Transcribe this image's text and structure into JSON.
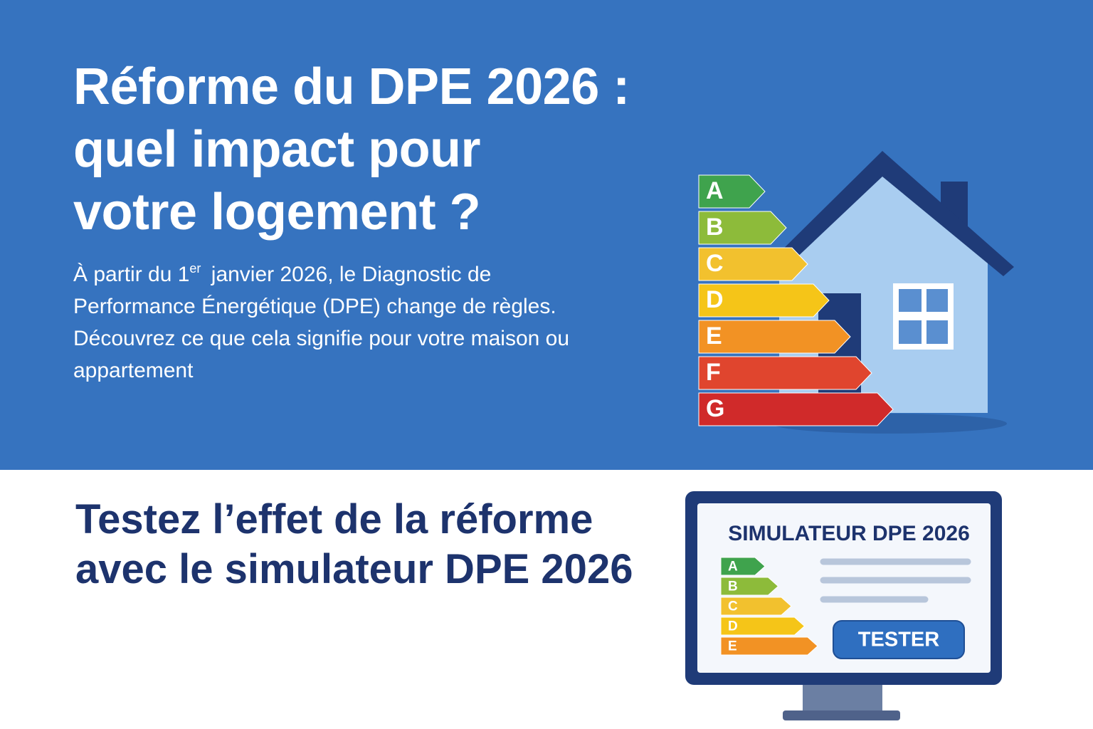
{
  "hero": {
    "title_lines": [
      "Réforme du DPE 2026 :",
      "quel impact pour",
      "votre logement ?"
    ],
    "intro": {
      "before": "À partir du 1",
      "sup": "er",
      "after": " janvier 2026, le Diagnostic de Performance Énergétique (DPE) change de règles. Découvrez ce que cela signifie pour votre maison ou appartement"
    },
    "energy_classes": [
      "A",
      "B",
      "C",
      "D",
      "E",
      "F",
      "G"
    ]
  },
  "simulator_section": {
    "heading_lines": [
      "Testez l’effet de la réforme",
      "avec le simulateur DPE 2026"
    ],
    "screen_title": "SIMULATEUR DPE 2026",
    "screen_classes": [
      "A",
      "B",
      "C",
      "D",
      "E"
    ],
    "button": "TESTER"
  }
}
